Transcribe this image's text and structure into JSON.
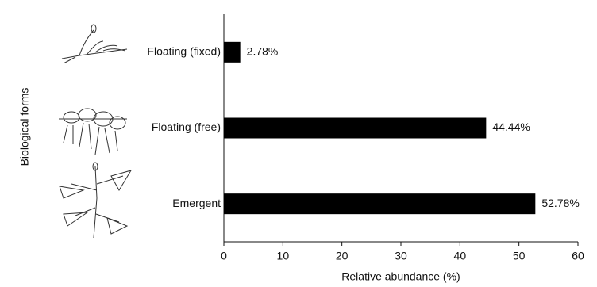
{
  "chart_data": {
    "type": "bar",
    "orientation": "horizontal",
    "categories": [
      "Floating (fixed)",
      "Floating (free)",
      "Emergent"
    ],
    "values": [
      2.78,
      44.44,
      52.78
    ],
    "value_labels": [
      "2.78%",
      "44.44%",
      "52.78%"
    ],
    "color": "#000000",
    "xlabel": "Relative abundance (%)",
    "ylabel": "Biological forms",
    "xlim": [
      0,
      60
    ],
    "xticks": [
      0,
      10,
      20,
      30,
      40,
      50,
      60
    ],
    "grid": false
  }
}
